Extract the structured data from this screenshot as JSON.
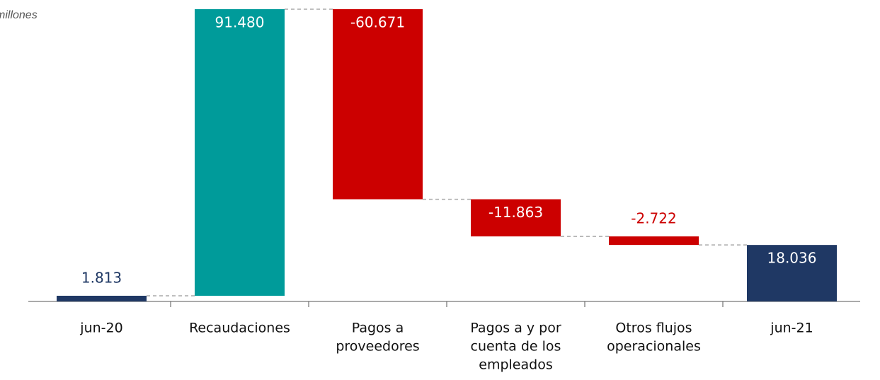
{
  "chart_data": {
    "type": "waterfall",
    "unit_note": "millones",
    "categories": [
      [
        "jun-20"
      ],
      [
        "Recaudaciones"
      ],
      [
        "Pagos a",
        "proveedores"
      ],
      [
        "Pagos a y por",
        "cuenta de los",
        "empleados"
      ],
      [
        "Otros flujos",
        "operacionales"
      ],
      [
        "jun-21"
      ]
    ],
    "measure": [
      "total",
      "relative",
      "relative",
      "relative",
      "relative",
      "total"
    ],
    "values": [
      1813,
      91480,
      -60671,
      -11863,
      -2722,
      18036
    ],
    "value_labels": [
      "1.813",
      "91.480",
      "-60.671",
      "-11.863",
      "-2.722",
      "18.036"
    ],
    "colors": {
      "total": "#1f3864",
      "increase": "#009b9a",
      "decrease": "#cc0000"
    },
    "ylim": [
      0,
      95000
    ]
  }
}
